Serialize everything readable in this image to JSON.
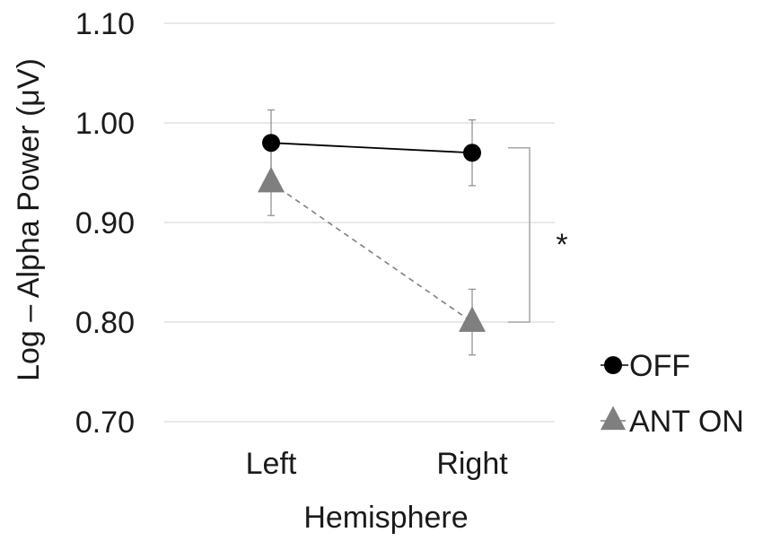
{
  "chart_data": {
    "type": "line",
    "categories": [
      "Left",
      "Right"
    ],
    "xlabel": "Hemisphere",
    "ylabel": "Log – Alpha Power (μV)",
    "ylim": [
      0.7,
      1.1
    ],
    "yticks": [
      "0.70",
      "0.80",
      "0.90",
      "1.00",
      "1.10"
    ],
    "grid": true,
    "legend_position": "right",
    "series": [
      {
        "name": "OFF",
        "values": [
          0.98,
          0.97
        ],
        "error": [
          0.033,
          0.033
        ],
        "marker": "circle",
        "line": "solid",
        "color": "#000000"
      },
      {
        "name": "ANT ON",
        "values": [
          0.94,
          0.8
        ],
        "error": [
          0.033,
          0.033
        ],
        "marker": "triangle",
        "line": "dashed",
        "color": "#7f7f7f"
      }
    ],
    "annotations": [
      {
        "text": "*",
        "between": [
          0.975,
          0.8
        ],
        "at": "Right"
      }
    ]
  }
}
